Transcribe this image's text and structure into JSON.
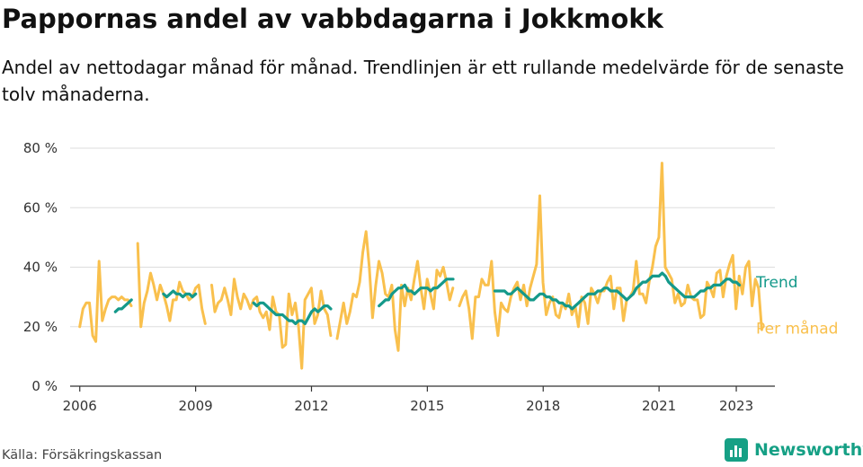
{
  "title": "Pappornas andel av vabbdagarna i Jokkmokk",
  "subtitle": "Andel av nettodagar månad för månad. Trendlinjen är ett rullande medelvärde för de senaste tolv månaderna.",
  "source": "Källa: Försäkringskassan",
  "brand": "Newsworthy",
  "colors": {
    "trend": "#14998a",
    "monthly": "#f9c04d",
    "brand": "#16a085",
    "grid": "#dddddd"
  },
  "chart_data": {
    "type": "line",
    "ylim": [
      0,
      80
    ],
    "yticks": [
      0,
      20,
      40,
      60,
      80
    ],
    "ytick_labels": [
      "0 %",
      "20 %",
      "40 %",
      "60 %",
      "80 %"
    ],
    "xlim": [
      2005.75,
      2024.0
    ],
    "xticks": [
      2006,
      2009,
      2012,
      2015,
      2018,
      2021,
      2023
    ],
    "xtick_labels": [
      "2006",
      "2009",
      "2012",
      "2015",
      "2018",
      "2021",
      "2023"
    ],
    "grid": true,
    "legend_position": "end-of-line labels, right",
    "series": [
      {
        "name": "Per månad",
        "color": "#f9c04d",
        "x_start": 2006.0,
        "step": 0.0833,
        "values": [
          20,
          26,
          28,
          28,
          17,
          15,
          42,
          22,
          26,
          29,
          30,
          30,
          29,
          30,
          29,
          29,
          27,
          null,
          48,
          20,
          28,
          32,
          38,
          34,
          29,
          34,
          31,
          27,
          22,
          29,
          29,
          35,
          32,
          31,
          29,
          30,
          33,
          34,
          26,
          21,
          null,
          34,
          25,
          28,
          29,
          33,
          29,
          24,
          36,
          30,
          26,
          31,
          29,
          26,
          29,
          30,
          25,
          23,
          25,
          19,
          30,
          25,
          24,
          13,
          14,
          31,
          24,
          28,
          20,
          6,
          29,
          31,
          33,
          21,
          24,
          32,
          26,
          24,
          17,
          null,
          16,
          22,
          28,
          21,
          25,
          31,
          30,
          35,
          45,
          52,
          40,
          23,
          34,
          42,
          38,
          31,
          30,
          34,
          19,
          12,
          34,
          27,
          33,
          29,
          36,
          42,
          33,
          26,
          36,
          31,
          26,
          39,
          37,
          40,
          35,
          29,
          33,
          null,
          27,
          30,
          32,
          26,
          16,
          30,
          30,
          36,
          34,
          34,
          42,
          25,
          17,
          28,
          26,
          25,
          30,
          33,
          35,
          29,
          34,
          27,
          33,
          37,
          41,
          64,
          35,
          24,
          28,
          30,
          24,
          23,
          28,
          26,
          31,
          24,
          27,
          20,
          30,
          28,
          21,
          33,
          31,
          28,
          32,
          32,
          35,
          37,
          26,
          33,
          33,
          22,
          29,
          30,
          32,
          42,
          31,
          31,
          28,
          35,
          40,
          47,
          50,
          75,
          40,
          38,
          36,
          28,
          31,
          27,
          28,
          34,
          30,
          29,
          29,
          23,
          24,
          35,
          33,
          30,
          38,
          39,
          30,
          37,
          41,
          44,
          26,
          37,
          31,
          40,
          42,
          27,
          36,
          33,
          19
        ]
      },
      {
        "name": "Trend",
        "color": "#14998a",
        "x_start": 2006.92,
        "step": 0.0833,
        "values": [
          25,
          26,
          26,
          27,
          28,
          29,
          null,
          null,
          null,
          null,
          null,
          null,
          null,
          null,
          null,
          31,
          30,
          31,
          32,
          31,
          31,
          30,
          31,
          31,
          30,
          31,
          null,
          null,
          null,
          null,
          null,
          null,
          null,
          null,
          null,
          null,
          null,
          null,
          null,
          null,
          null,
          null,
          null,
          28,
          27,
          28,
          28,
          27,
          26,
          25,
          24,
          24,
          24,
          23,
          22,
          22,
          21,
          22,
          22,
          21,
          23,
          25,
          26,
          25,
          26,
          27,
          27,
          26,
          null,
          null,
          null,
          null,
          null,
          null,
          null,
          null,
          null,
          null,
          null,
          null,
          null,
          null,
          27,
          28,
          29,
          29,
          31,
          32,
          33,
          33,
          34,
          32,
          32,
          31,
          32,
          33,
          33,
          33,
          32,
          33,
          33,
          34,
          35,
          36,
          36,
          36,
          null,
          null,
          null,
          null,
          null,
          null,
          null,
          null,
          null,
          null,
          null,
          null,
          32,
          32,
          32,
          32,
          31,
          31,
          32,
          33,
          32,
          31,
          30,
          29,
          29,
          30,
          31,
          31,
          30,
          30,
          29,
          29,
          28,
          28,
          27,
          27,
          26,
          27,
          28,
          29,
          30,
          31,
          31,
          31,
          32,
          32,
          33,
          33,
          32,
          32,
          32,
          31,
          30,
          29,
          30,
          31,
          33,
          34,
          35,
          35,
          36,
          37,
          37,
          37,
          38,
          37,
          35,
          34,
          33,
          32,
          31,
          30,
          30,
          30,
          30,
          31,
          32,
          32,
          33,
          33,
          34,
          34,
          34,
          35,
          36,
          36,
          35,
          35,
          34
        ]
      }
    ]
  }
}
